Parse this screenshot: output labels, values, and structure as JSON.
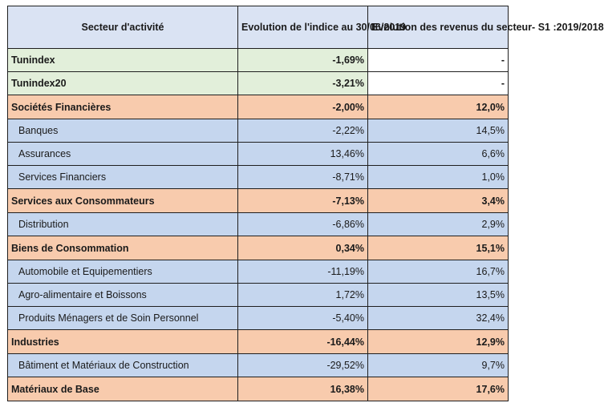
{
  "header": {
    "sector": "Secteur d'activité",
    "index_change": "Evolution  de l'indice au 30/06/2019",
    "revenue_change": "Evolution  des revenus du secteur- S1 :2019/2018"
  },
  "rows": [
    {
      "kind": "index",
      "name": "Tunindex",
      "index": "-1,69%",
      "revenue": "-"
    },
    {
      "kind": "index",
      "name": "Tunindex20",
      "index": "-3,21%",
      "revenue": "-"
    },
    {
      "kind": "group",
      "name": "Sociétés Financières",
      "index": "-2,00%",
      "revenue": "12,0%"
    },
    {
      "kind": "sub",
      "name": "Banques",
      "index": "-2,22%",
      "revenue": "14,5%"
    },
    {
      "kind": "sub",
      "name": "Assurances",
      "index": "13,46%",
      "revenue": "6,6%"
    },
    {
      "kind": "sub",
      "name": "Services Financiers",
      "index": "-8,71%",
      "revenue": "1,0%"
    },
    {
      "kind": "group",
      "name": "Services aux Consommateurs",
      "index": "-7,13%",
      "revenue": "3,4%"
    },
    {
      "kind": "sub",
      "name": "Distribution",
      "index": "-6,86%",
      "revenue": "2,9%"
    },
    {
      "kind": "group",
      "name": "Biens de Consommation",
      "index": "0,34%",
      "revenue": "15,1%"
    },
    {
      "kind": "sub",
      "name": "Automobile et Equipementiers",
      "index": "-11,19%",
      "revenue": "16,7%"
    },
    {
      "kind": "sub",
      "name": "Agro-alimentaire et Boissons",
      "index": "1,72%",
      "revenue": "13,5%"
    },
    {
      "kind": "sub",
      "name": "Produits Ménagers et de Soin Personnel",
      "index": "-5,40%",
      "revenue": "32,4%"
    },
    {
      "kind": "group",
      "name": "Industries",
      "index": "-16,44%",
      "revenue": "12,9%"
    },
    {
      "kind": "sub",
      "name": "Bâtiment et Matériaux de Construction",
      "index": "-29,52%",
      "revenue": "9,7%"
    },
    {
      "kind": "group",
      "name": "Matériaux de Base",
      "index": "16,38%",
      "revenue": "17,6%"
    }
  ],
  "colors": {
    "header_bg": "#dae3f3",
    "index_bg": "#e2efda",
    "group_bg": "#f8cbad",
    "sub_bg": "#c5d6ee"
  }
}
